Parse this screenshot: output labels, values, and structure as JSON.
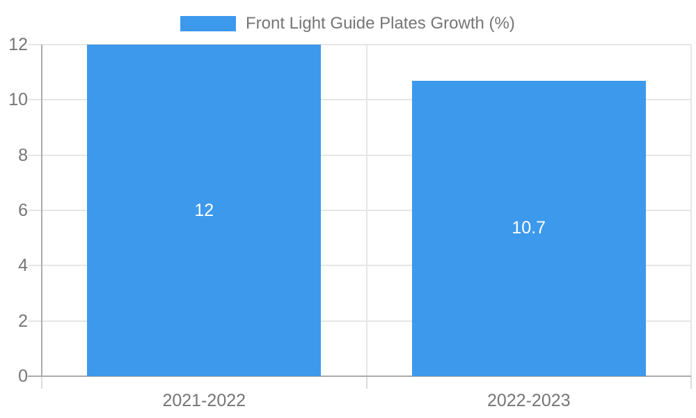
{
  "legend": {
    "label": "Front Light Guide Plates Growth (%)"
  },
  "chart_data": {
    "type": "bar",
    "title": "Front Light Guide Plates Growth (%)",
    "categories": [
      "2021-2022",
      "2022-2023"
    ],
    "values": [
      12,
      10.7
    ],
    "values_display": [
      "12",
      "10.7"
    ],
    "xlabel": "",
    "ylabel": "",
    "ylim": [
      0,
      12
    ],
    "yticks": [
      0,
      2,
      4,
      6,
      8,
      10,
      12
    ],
    "grid": true,
    "legend_position": "top-center",
    "colors": {
      "bar": "#3D99EC",
      "bar_label": "#FFFFFF",
      "axis_text": "#757575",
      "gridline": "#E6E6E6",
      "axis_line": "#ABABAB",
      "background": "#FFFFFF"
    }
  }
}
